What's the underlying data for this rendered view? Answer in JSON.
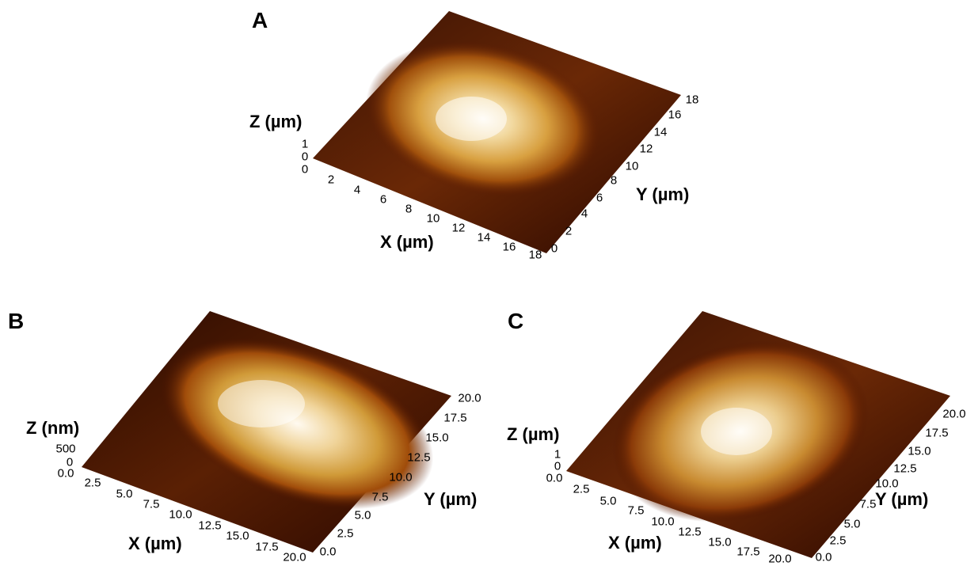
{
  "panels": [
    {
      "id": "A",
      "label": "A",
      "z_title": "Z (µm)",
      "z_ticks": [
        "1",
        "0",
        "0"
      ],
      "x_title": "X (µm)",
      "x_ticks": [
        "2",
        "4",
        "6",
        "8",
        "10",
        "12",
        "14",
        "16",
        "18"
      ],
      "y_title": "Y (µm)",
      "y_ticks": [
        "0",
        "2",
        "4",
        "6",
        "8",
        "10",
        "12",
        "14",
        "16",
        "18"
      ]
    },
    {
      "id": "B",
      "label": "B",
      "z_title": "Z (nm)",
      "z_ticks": [
        "500",
        "0",
        "0.0"
      ],
      "x_title": "X (µm)",
      "x_ticks": [
        "2.5",
        "5.0",
        "7.5",
        "10.0",
        "12.5",
        "15.0",
        "17.5",
        "20.0"
      ],
      "y_title": "Y (µm)",
      "y_ticks": [
        "0.0",
        "2.5",
        "5.0",
        "7.5",
        "10.0",
        "12.5",
        "15.0",
        "17.5",
        "20.0"
      ]
    },
    {
      "id": "C",
      "label": "C",
      "z_title": "Z (µm)",
      "z_ticks": [
        "1",
        "0",
        "0.0"
      ],
      "x_title": "X (µm)",
      "x_ticks": [
        "2.5",
        "5.0",
        "7.5",
        "10.0",
        "12.5",
        "15.0",
        "17.5",
        "20.0"
      ],
      "y_title": "Y (µm)",
      "y_ticks": [
        "0.0",
        "2.5",
        "5.0",
        "7.5",
        "10.0",
        "12.5",
        "15.0",
        "17.5",
        "20.0"
      ]
    }
  ],
  "colors": {
    "background_dark": "#2a0a00",
    "mid": "#8a3a08",
    "bright": "#d8a040",
    "highlight": "#fff6e0"
  }
}
